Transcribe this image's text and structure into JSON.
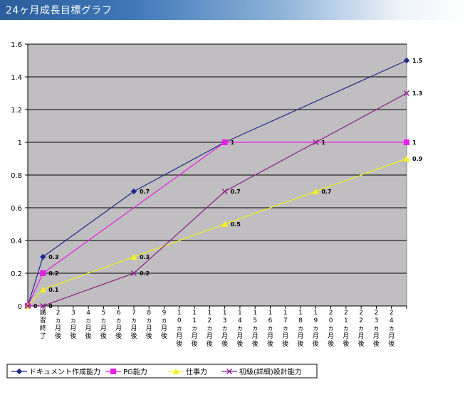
{
  "header": {
    "title": "24ヶ月成長目標グラフ"
  },
  "chart_data": {
    "type": "line",
    "ylim": [
      0,
      1.6
    ],
    "yticks": [
      "0",
      "0.2",
      "0.4",
      "0.6",
      "0.8",
      "1",
      "1.2",
      "1.4",
      "1.6"
    ],
    "categories": [
      "講習終了",
      "2ヵ月後",
      "3ヵ月後",
      "4ヵ月後",
      "5ヵ月後",
      "6ヵ月後",
      "7ヵ月後",
      "8ヵ月後",
      "9ヵ月後",
      "10ヵ月後",
      "11ヵ月後",
      "12ヵ月後",
      "13ヵ月後",
      "14ヵ月後",
      "15ヵ月後",
      "16ヵ月後",
      "17ヵ月後",
      "18ヵ月後",
      "19ヵ月後",
      "20ヵ月後",
      "21ヵ月後",
      "22ヵ月後",
      "23ヵ月後",
      "24ヵ月後"
    ],
    "category_labels_vertical": [
      "講習終了",
      "2ヵ月後",
      "3ヵ月後",
      "4ヵ月後",
      "5ヵ月後",
      "6ヵ月後",
      "7ヵ月後",
      "8ヵ月後",
      "9ヵ月後",
      "10ヵ月後",
      "11ヵ月後",
      "12ヵ月後",
      "13ヵ月後",
      "14ヵ月後",
      "15ヵ月後",
      "16ヵ月後",
      "17ヵ月後",
      "18ヵ月後",
      "19ヵ月後",
      "20ヵ月後",
      "21ヵ月後",
      "22ヵ月後",
      "23ヵ月後",
      "24ヵ月後"
    ],
    "series": [
      {
        "name": "ドキュメント作成能力",
        "color": "#1f2a8c",
        "marker": "diamond",
        "points": [
          [
            0,
            0
          ],
          [
            1,
            0.3
          ],
          [
            7,
            0.7
          ],
          [
            13,
            1
          ],
          [
            25,
            1.5
          ]
        ],
        "labels": [
          {
            "i": 0,
            "text": "0"
          },
          {
            "i": 1,
            "text": "0.3"
          },
          {
            "i": 7,
            "text": "0.7"
          },
          {
            "i": 13,
            "text": "1"
          },
          {
            "i": 25,
            "text": "1.5"
          }
        ]
      },
      {
        "name": "PG能力",
        "color": "#e61ee6",
        "marker": "square",
        "points": [
          [
            0,
            0
          ],
          [
            1,
            0.2
          ],
          [
            13,
            1
          ],
          [
            25,
            1
          ]
        ],
        "labels": [
          {
            "i": 1,
            "text": "0.2"
          },
          {
            "i": 25,
            "text": "1"
          }
        ]
      },
      {
        "name": "仕事力",
        "color": "#f2f21a",
        "marker": "triangle",
        "points": [
          [
            0,
            0
          ],
          [
            1,
            0.1
          ],
          [
            7,
            0.3
          ],
          [
            13,
            0.5
          ],
          [
            19,
            0.7
          ],
          [
            25,
            0.9
          ]
        ],
        "labels": [
          {
            "i": 1,
            "text": "0.1"
          },
          {
            "i": 7,
            "text": "0.3"
          },
          {
            "i": 13,
            "text": "0.5"
          },
          {
            "i": 19,
            "text": "0.7"
          },
          {
            "i": 25,
            "text": "0.9"
          }
        ]
      },
      {
        "name": "初級(詳細)設計能力",
        "color": "#8a1f8a",
        "marker": "x",
        "points": [
          [
            0,
            0
          ],
          [
            1,
            0
          ],
          [
            7,
            0.2
          ],
          [
            13,
            0.7
          ],
          [
            19,
            1
          ],
          [
            25,
            1.3
          ]
        ],
        "labels": [
          {
            "i": 1,
            "text": "0"
          },
          {
            "i": 7,
            "text": "0.2"
          },
          {
            "i": 13,
            "text": "0.7"
          },
          {
            "i": 19,
            "text": "1"
          },
          {
            "i": 25,
            "text": "1.3"
          }
        ]
      }
    ],
    "legend": "bottom-left",
    "grid": true
  }
}
